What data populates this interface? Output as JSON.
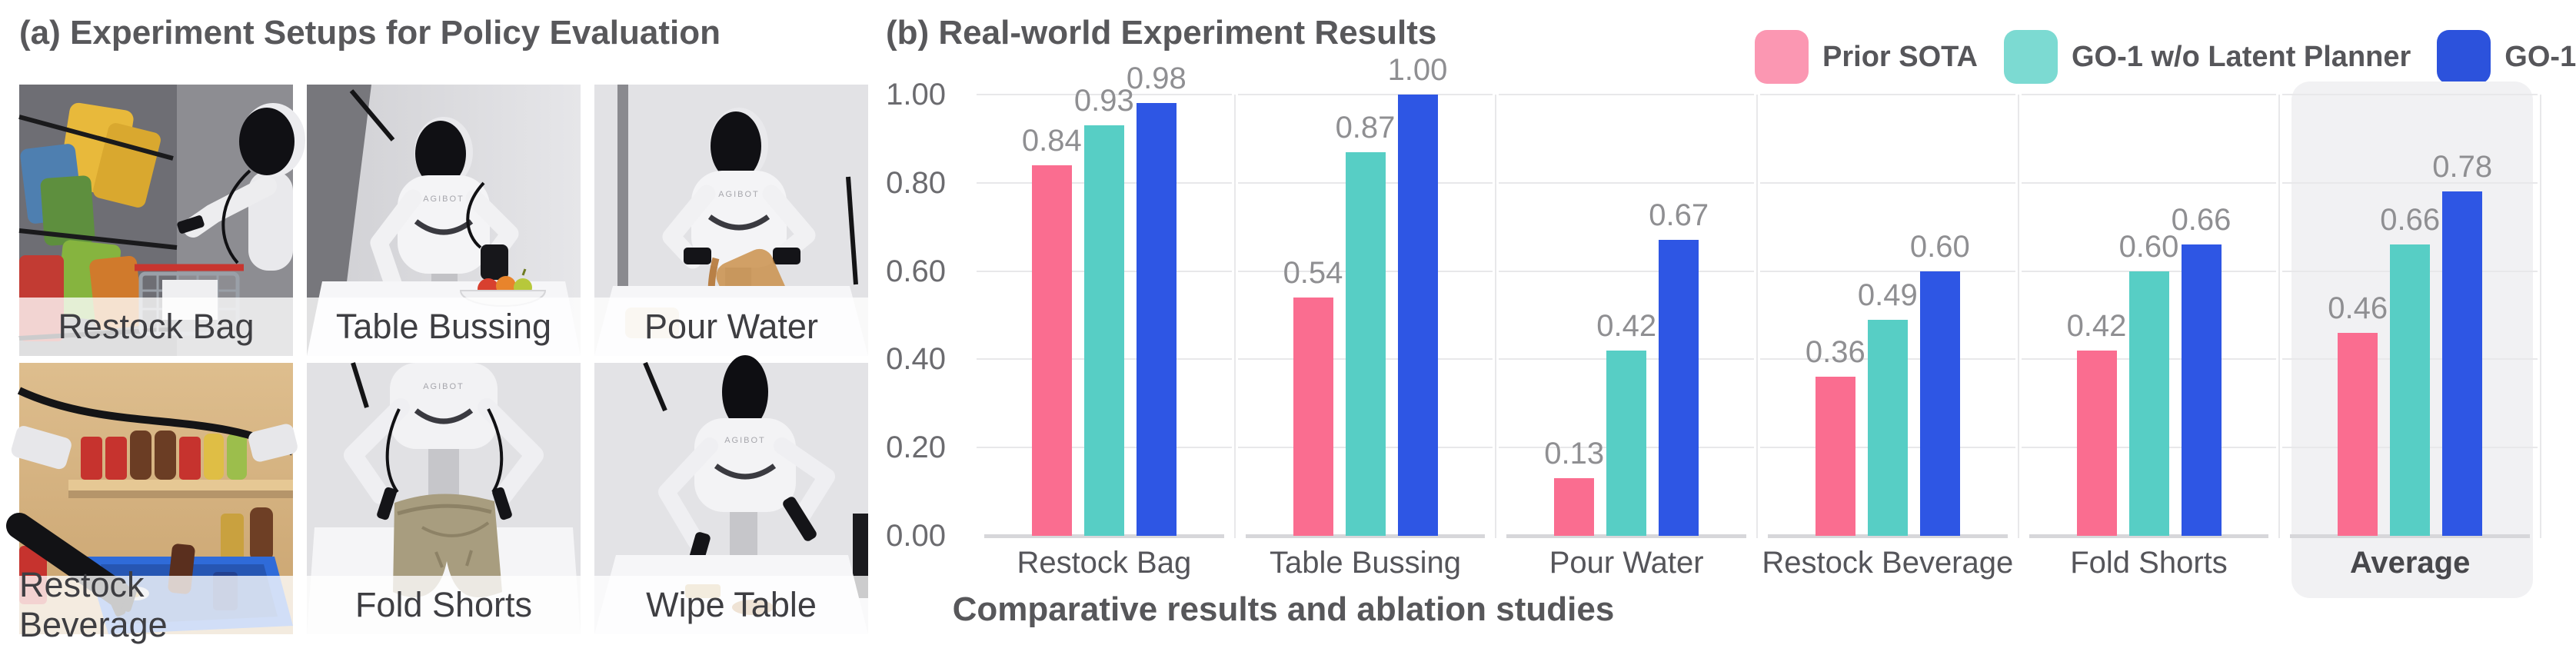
{
  "panel_a": {
    "title": "(a) Experiment Setups for Policy Evaluation",
    "robot_brand": "AGIBOT",
    "photos": [
      {
        "label": "Restock Bag",
        "scene": "restock-bag"
      },
      {
        "label": "Table Bussing",
        "scene": "table-bussing"
      },
      {
        "label": "Pour Water",
        "scene": "pour-water"
      },
      {
        "label": "Restock Beverage",
        "scene": "restock-beverage"
      },
      {
        "label": "Fold Shorts",
        "scene": "fold-shorts"
      },
      {
        "label": "Wipe Table",
        "scene": "wipe-table"
      }
    ]
  },
  "panel_b": {
    "title": "(b) Real-world Experiment Results",
    "caption": "Comparative results and ablation studies"
  },
  "chart_data": {
    "type": "bar",
    "title": "(b) Real-world Experiment Results",
    "categories": [
      "Restock Bag",
      "Table Bussing",
      "Pour Water",
      "Restock Beverage",
      "Fold Shorts",
      "Average"
    ],
    "series": [
      {
        "name": "Prior SOTA",
        "color": "#FA6D90",
        "legend_color": "#FB97B2",
        "values": [
          0.84,
          0.54,
          0.13,
          0.36,
          0.42,
          0.46
        ]
      },
      {
        "name": "GO-1 w/o Latent Planner",
        "color": "#57CEC5",
        "legend_color": "#7CDAD2",
        "values": [
          0.93,
          0.87,
          0.42,
          0.49,
          0.6,
          0.66
        ]
      },
      {
        "name": "GO-1",
        "color": "#2E56E4",
        "legend_color": "#2C52DC",
        "values": [
          0.98,
          1.0,
          0.67,
          0.6,
          0.66,
          0.78
        ]
      }
    ],
    "ylim": [
      0,
      1.0
    ],
    "yticks": [
      "0.00",
      "0.20",
      "0.40",
      "0.60",
      "0.80",
      "1.00"
    ],
    "grid": true,
    "legend_position": "top-right",
    "highlight_category": "Average",
    "highlight_color": "#F1F1F3",
    "xlabel": "",
    "ylabel": ""
  }
}
